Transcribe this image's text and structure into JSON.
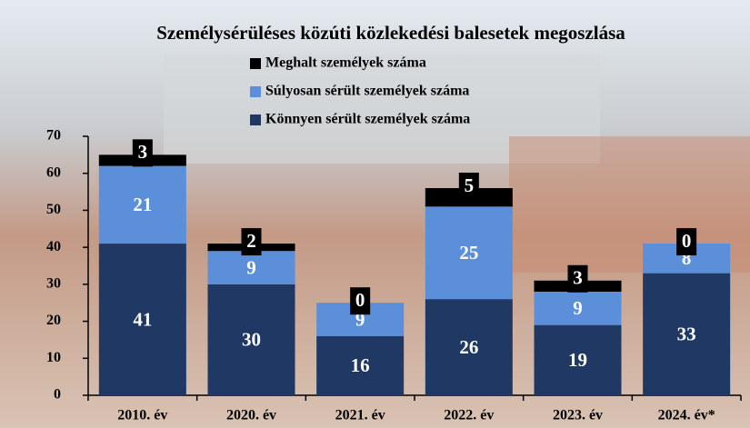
{
  "chart_data": {
    "type": "bar",
    "stacked": true,
    "title": "Személysérüléses közúti közlekedési balesetek megoszlása",
    "categories": [
      "2010. év",
      "2020. év",
      "2021. év",
      "2022. év",
      "2023. év",
      "2024. év*"
    ],
    "series": [
      {
        "name": "Könnyen sérült személyek száma",
        "color": "#1f3864",
        "values": [
          41,
          30,
          16,
          26,
          19,
          33
        ]
      },
      {
        "name": "Súlyosan sérült személyek száma",
        "color": "#5b8fd9",
        "values": [
          21,
          9,
          9,
          25,
          9,
          8
        ]
      },
      {
        "name": "Meghalt személyek száma",
        "color": "#000000",
        "values": [
          3,
          2,
          0,
          5,
          3,
          0
        ]
      }
    ],
    "ylim": [
      0,
      70
    ],
    "yticks": [
      0,
      10,
      20,
      30,
      40,
      50,
      60,
      70
    ]
  }
}
